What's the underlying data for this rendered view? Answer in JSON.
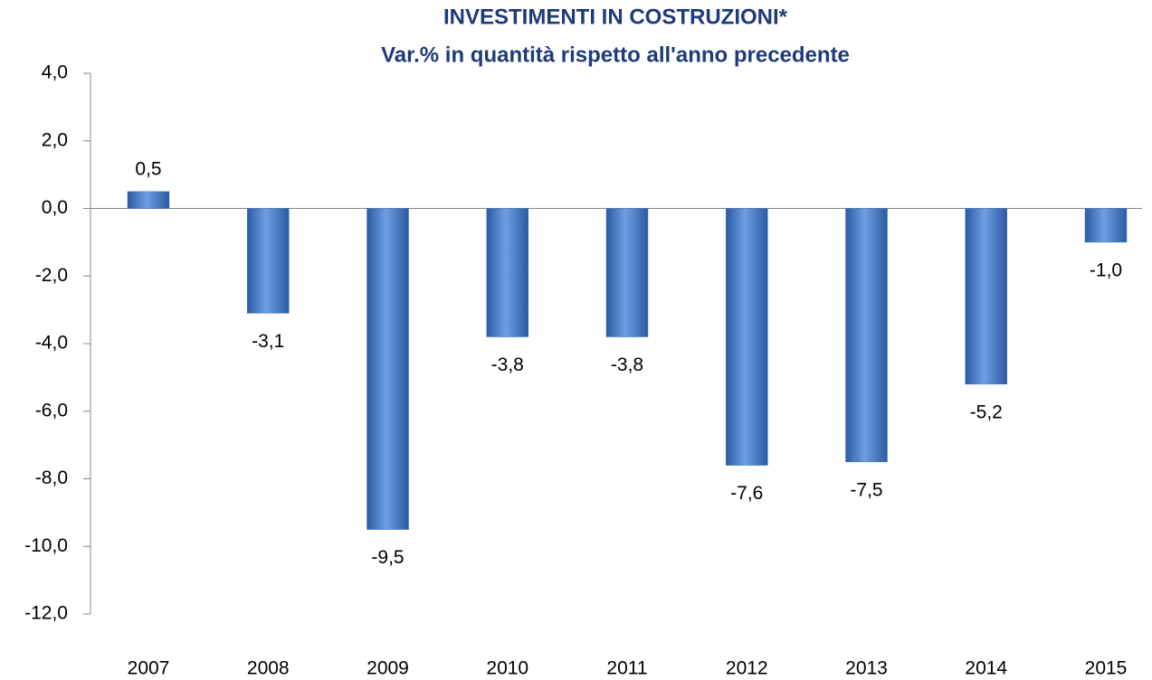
{
  "chart_data": {
    "type": "bar",
    "title": "INVESTIMENTI IN COSTRUZIONI*",
    "subtitle": "Var.% in quantità rispetto all'anno precedente",
    "categories": [
      "2007",
      "2008",
      "2009",
      "2010",
      "2011",
      "2012",
      "2013",
      "2014",
      "2015"
    ],
    "values": [
      0.5,
      -3.1,
      -9.5,
      -3.8,
      -3.8,
      -7.6,
      -7.5,
      -5.2,
      -1.0
    ],
    "value_labels": [
      "0,5",
      "-3,1",
      "-9,5",
      "-3,8",
      "-3,8",
      "-7,6",
      "-7,5",
      "-5,2",
      "-1,0"
    ],
    "color": "#3f72c0",
    "ylim": [
      -12,
      4
    ],
    "yticks": [
      {
        "value": 4,
        "label": "4,0"
      },
      {
        "value": 2,
        "label": "2,0"
      },
      {
        "value": 0,
        "label": "0,0"
      },
      {
        "value": -2,
        "label": "-2,0"
      },
      {
        "value": -4,
        "label": "-4,0"
      },
      {
        "value": -6,
        "label": "-6,0"
      },
      {
        "value": -8,
        "label": "-8,0"
      },
      {
        "value": -10,
        "label": "-10,0"
      },
      {
        "value": -12,
        "label": "-12,0"
      }
    ],
    "grid": false
  }
}
